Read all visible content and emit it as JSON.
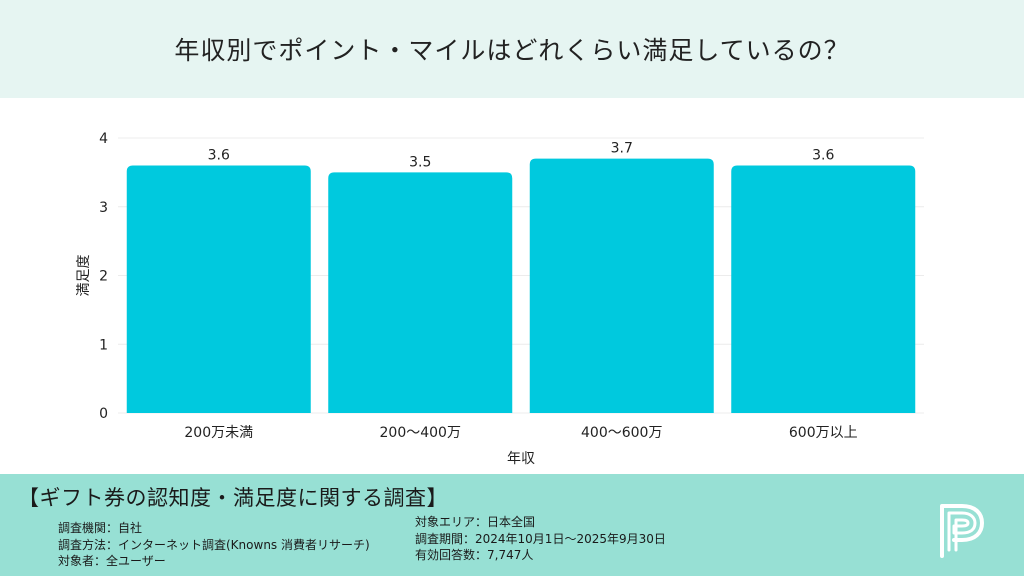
{
  "header": {
    "title": "年収別でポイント・マイルはどれくらい満足しているの？"
  },
  "chart_data": {
    "type": "bar",
    "title": "",
    "xlabel": "年収",
    "ylabel": "満足度",
    "categories": [
      "200万未満",
      "200〜400万",
      "400〜600万",
      "600万以上"
    ],
    "values": [
      3.6,
      3.5,
      3.7,
      3.6
    ],
    "value_labels": [
      "3.6",
      "3.5",
      "3.7",
      "3.6"
    ],
    "ylim": [
      0,
      4
    ],
    "yticks": [
      "0",
      "1",
      "2",
      "3",
      "4"
    ],
    "grid": true,
    "legend": "none",
    "bar_color": "#00c9de"
  },
  "footer": {
    "title": "【ギフト券の認知度・満足度に関する調査】",
    "left_lines": [
      "調査機関：自社",
      "調査方法：インターネット調査(Knowns 消費者リサーチ)",
      "対象者：全ユーザー"
    ],
    "right_lines": [
      "対象エリア：日本全国",
      "調査期間：2024年10月1日〜2025年9月30日",
      "有効回答数：7,747人"
    ],
    "logo_icon": "p-logo-icon"
  },
  "colors": {
    "header_bg": "#e6f5f2",
    "footer_bg": "#97e0d4",
    "bar": "#00c9de"
  }
}
